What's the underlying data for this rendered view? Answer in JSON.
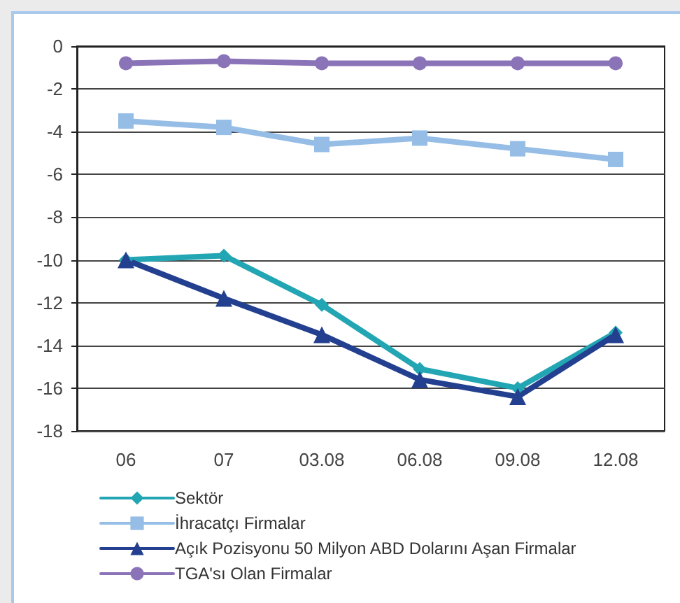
{
  "chart_data": {
    "type": "line",
    "categories": [
      "06",
      "07",
      "03.08",
      "06.08",
      "09.08",
      "12.08"
    ],
    "series": [
      {
        "name": "Sektör",
        "color": "#22a6b3",
        "marker": "diamond",
        "values": [
          -10.0,
          -9.8,
          -12.1,
          -15.1,
          -16.0,
          -13.4
        ]
      },
      {
        "name": "İhracatçı Firmalar",
        "color": "#95bde6",
        "marker": "square",
        "values": [
          -3.5,
          -3.8,
          -4.6,
          -4.3,
          -4.8,
          -5.3
        ]
      },
      {
        "name": "Açık Pozisyonu 50 Milyon ABD Dolarını Aşan Firmalar",
        "color": "#233f8f",
        "marker": "triangle",
        "values": [
          -10.0,
          -11.8,
          -13.5,
          -15.6,
          -16.4,
          -13.5
        ]
      },
      {
        "name": "TGA'sı Olan Firmalar",
        "color": "#8b73b8",
        "marker": "circle",
        "values": [
          -0.8,
          -0.7,
          -0.8,
          -0.8,
          -0.8,
          -0.8
        ]
      }
    ],
    "ylim": [
      -18,
      0
    ],
    "yticks": [
      -18,
      -16,
      -14,
      -12,
      -10,
      -8,
      -6,
      -4,
      -2,
      0
    ],
    "grid": "y",
    "legend": "bottom",
    "line_style": "solid"
  }
}
